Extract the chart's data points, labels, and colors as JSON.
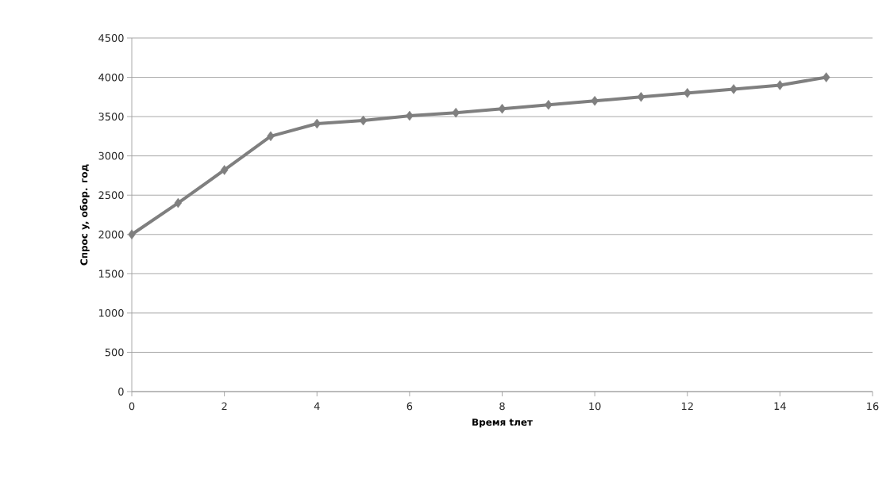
{
  "chart_data": {
    "type": "line",
    "xlabel": "Время tлет",
    "ylabel": "Спрос y, обор. год",
    "x": [
      0,
      1,
      2,
      3,
      4,
      5,
      6,
      7,
      8,
      9,
      10,
      11,
      12,
      13,
      14,
      15
    ],
    "series": [
      {
        "color": "#7f7f7f",
        "values": [
          2000,
          2400,
          2820,
          3250,
          3410,
          3450,
          3510,
          3550,
          3600,
          3650,
          3700,
          3750,
          3800,
          3850,
          3900,
          4000
        ]
      }
    ],
    "xlim": [
      0,
      16
    ],
    "ylim": [
      0,
      4500
    ],
    "xticks": [
      0,
      2,
      4,
      6,
      8,
      10,
      12,
      14,
      16
    ],
    "yticks": [
      0,
      500,
      1000,
      1500,
      2000,
      2500,
      3000,
      3500,
      4000,
      4500
    ],
    "grid": "y",
    "marker": "diamond",
    "line_style": "solid"
  }
}
